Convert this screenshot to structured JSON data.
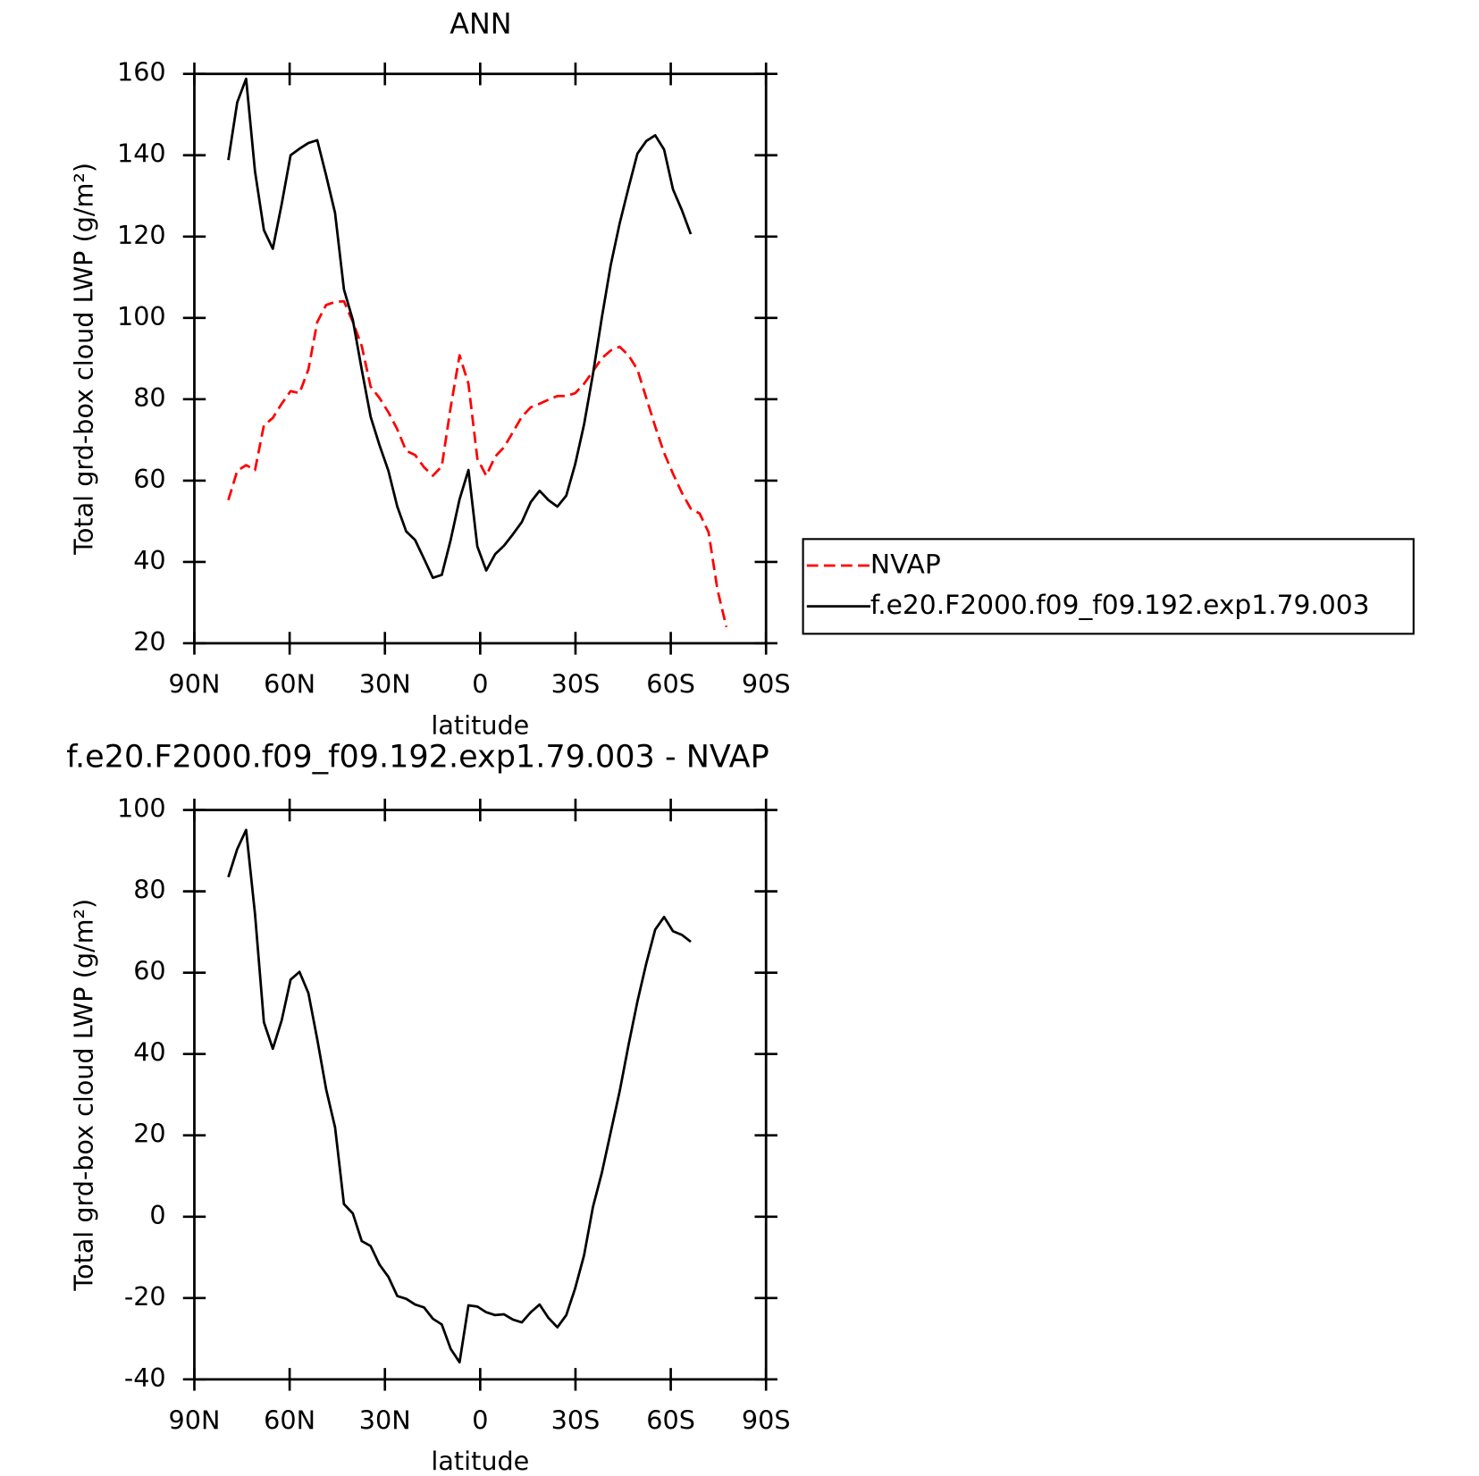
{
  "chart_data": [
    {
      "type": "line",
      "title": "ANN",
      "xlabel": "latitude",
      "ylabel": "Total grd-box cloud LWP (g/m²)",
      "x": [
        79.3,
        76.5,
        73.7,
        70.9,
        68.1,
        65.3,
        62.5,
        59.7,
        56.9,
        54.1,
        51.3,
        48.5,
        45.7,
        42.9,
        40.1,
        37.3,
        34.5,
        31.7,
        28.9,
        26.1,
        23.3,
        20.5,
        17.7,
        14.9,
        12.1,
        9.3,
        6.5,
        3.7,
        0.9,
        -1.9,
        -4.7,
        -7.5,
        -10.3,
        -13.1,
        -15.9,
        -18.7,
        -21.5,
        -24.3,
        -27.1,
        -29.9,
        -32.7,
        -35.5,
        -38.3,
        -41.1,
        -43.9,
        -46.7,
        -49.5,
        -52.3,
        -55.1,
        -57.9,
        -60.7,
        -63.5,
        -66.3,
        -69.1,
        -71.9,
        -74.7,
        -77.5
      ],
      "series": [
        {
          "name": "NVAP",
          "color": "#ff0000",
          "line_style": "dashed",
          "values": [
            55.2,
            62.4,
            63.8,
            62.6,
            73.6,
            75.4,
            78.9,
            82,
            81.5,
            87.3,
            99,
            103.2,
            103.9,
            104.1,
            99,
            93.1,
            83.1,
            80.3,
            76.8,
            72.6,
            67.3,
            66.3,
            63.3,
            61.2,
            63.5,
            78,
            90.8,
            83.8,
            65.4,
            61.2,
            65.9,
            68.2,
            71.9,
            75.7,
            78,
            78.9,
            79.9,
            80.8,
            80.8,
            81.5,
            83.8,
            86.9,
            90.1,
            92,
            92.9,
            90.8,
            87.3,
            80.3,
            73.3,
            66.8,
            61.7,
            57,
            53.1,
            51.9,
            47.3,
            33.2,
            24
          ]
        },
        {
          "name": "f.e20.F2000.f09_f09.192.exp1.79.003",
          "color": "#000000",
          "line_style": "solid",
          "values": [
            138.8,
            153,
            158.8,
            136,
            121.6,
            117,
            128,
            140,
            141.6,
            143,
            143.7,
            135,
            125.8,
            107,
            99.5,
            87.3,
            75.7,
            68.7,
            62.4,
            53.6,
            47.5,
            45.4,
            40.8,
            36.1,
            36.8,
            45.4,
            55.4,
            62.6,
            43.8,
            37.9,
            41.9,
            44,
            46.8,
            49.8,
            54.7,
            57.5,
            55.2,
            53.6,
            56.3,
            64,
            73.8,
            86.2,
            100.1,
            113,
            123.2,
            132,
            140.4,
            143.5,
            144.9,
            141.4,
            131.6,
            126.5,
            120.6,
            null,
            null,
            null,
            null
          ]
        }
      ],
      "xlim": [
        90,
        -90
      ],
      "xticks": [
        {
          "value": 90,
          "label": "90N"
        },
        {
          "value": 60,
          "label": "60N"
        },
        {
          "value": 30,
          "label": "30N"
        },
        0,
        {
          "value": -30,
          "label": "30S"
        },
        {
          "value": -60,
          "label": "60S"
        },
        {
          "value": -90,
          "label": "90S"
        }
      ],
      "ylim": [
        20,
        160
      ],
      "yticks": [
        20,
        40,
        60,
        80,
        100,
        120,
        140,
        160
      ],
      "legend": "right"
    },
    {
      "type": "line",
      "title": "f.e20.F2000.f09_f09.192.exp1.79.003 - NVAP",
      "xlabel": "latitude",
      "ylabel": "Total grd-box cloud LWP (g/m²)",
      "x": [
        79.3,
        76.5,
        73.7,
        70.9,
        68.1,
        65.3,
        62.5,
        59.7,
        56.9,
        54.1,
        51.3,
        48.5,
        45.7,
        42.9,
        40.1,
        37.3,
        34.5,
        31.7,
        28.9,
        26.1,
        23.3,
        20.5,
        17.7,
        14.9,
        12.1,
        9.3,
        6.5,
        3.7,
        0.9,
        -1.9,
        -4.7,
        -7.5,
        -10.3,
        -13.1,
        -15.9,
        -18.7,
        -21.5,
        -24.3,
        -27.1,
        -29.9,
        -32.7,
        -35.5,
        -38.3,
        -41.1,
        -43.9,
        -46.7,
        -49.5,
        -52.3,
        -55.1,
        -57.9,
        -60.7,
        -63.5,
        -66.3
      ],
      "values": [
        83.5,
        90.4,
        95.1,
        74.4,
        47.8,
        41.3,
        48.3,
        58.3,
        60.2,
        55,
        43.6,
        31.3,
        22,
        3.1,
        0.8,
        -6,
        -7.2,
        -11.8,
        -14.8,
        -19.5,
        -20.2,
        -21.6,
        -22.3,
        -25.1,
        -26.5,
        -32.5,
        -35.8,
        -21.8,
        -22.1,
        -23.5,
        -24.2,
        -24,
        -25.3,
        -26,
        -23.5,
        -21.6,
        -24.9,
        -27.2,
        -24.2,
        -17.6,
        -9.5,
        2.4,
        10.8,
        20.8,
        30.8,
        42.2,
        52.9,
        62.3,
        70.6,
        73.7,
        70.2,
        69.3,
        67.6
      ],
      "color": "#000000",
      "line_style": "solid",
      "xlim": [
        90,
        -90
      ],
      "xticks": [
        {
          "value": 90,
          "label": "90N"
        },
        {
          "value": 60,
          "label": "60N"
        },
        {
          "value": 30,
          "label": "30N"
        },
        0,
        {
          "value": -30,
          "label": "30S"
        },
        {
          "value": -60,
          "label": "60S"
        },
        {
          "value": -90,
          "label": "90S"
        }
      ],
      "ylim": [
        -40,
        100
      ],
      "yticks": [
        -40,
        -20,
        0,
        20,
        40,
        60,
        80,
        100
      ]
    }
  ]
}
